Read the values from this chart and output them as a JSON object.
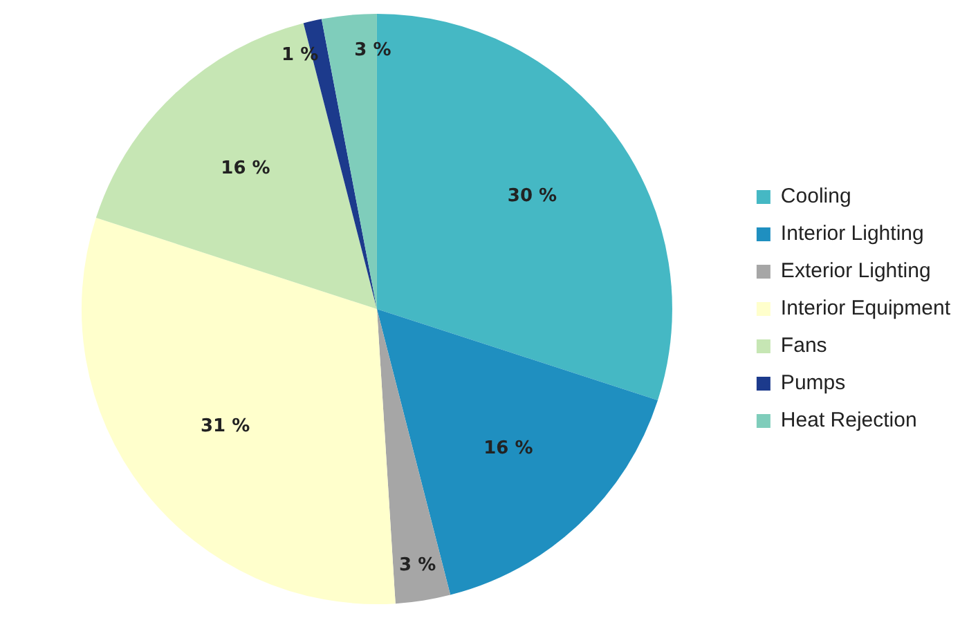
{
  "chart_data": {
    "type": "pie",
    "categories": [
      "Cooling",
      "Interior Lighting",
      "Exterior Lighting",
      "Interior Equipment",
      "Fans",
      "Pumps",
      "Heat Rejection"
    ],
    "values": [
      30,
      16,
      3,
      31,
      16,
      1,
      3
    ],
    "colors": [
      "#45b8c4",
      "#1f8fc0",
      "#a6a6a6",
      "#ffffcc",
      "#c6e6b4",
      "#1c3a8c",
      "#7fcdbb"
    ],
    "value_labels": [
      "30 %",
      "16 %",
      "3 %",
      "31 %",
      "16 %",
      "1 %",
      "3 %"
    ],
    "legend": "right"
  }
}
